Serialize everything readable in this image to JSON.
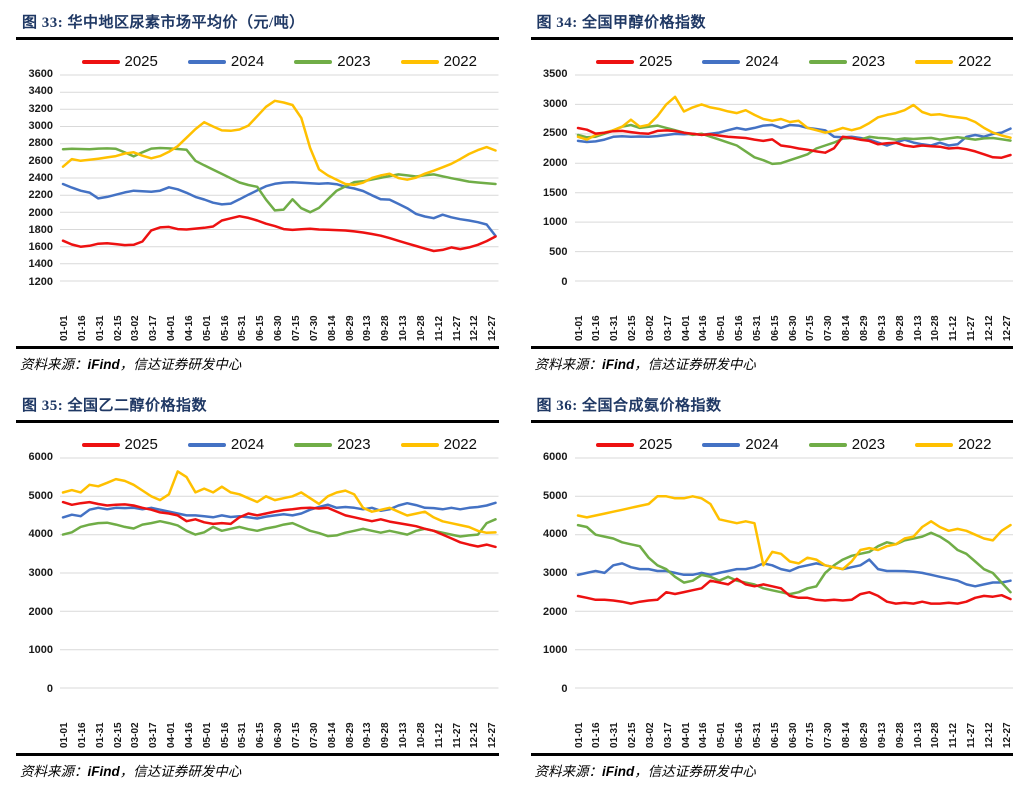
{
  "source": {
    "prefix": "资料来源：",
    "brand": "iFind",
    "suffix": "，信达证券研发中心"
  },
  "colors": {
    "title_text": "#1F3864",
    "gridline": "#D9D9D9",
    "rule": "#000000",
    "axis_text": "#1a1a1a",
    "red_2025": "#ED1111",
    "blue_2024": "#4472C4",
    "green_2023": "#70AD47",
    "yellow_2022": "#FFC000"
  },
  "chart_data": {
    "shared_x_tick_labels": [
      "01-01",
      "01-16",
      "01-31",
      "02-15",
      "03-02",
      "03-17",
      "04-01",
      "04-16",
      "05-01",
      "05-16",
      "05-31",
      "06-15",
      "06-30",
      "07-15",
      "07-30",
      "08-14",
      "08-29",
      "09-13",
      "09-28",
      "10-13",
      "10-28",
      "11-12",
      "11-27",
      "12-12",
      "12-27"
    ],
    "legend_position": "top",
    "grid": "horizontal",
    "charts": [
      {
        "type": "line",
        "title": "图 33: 华中地区尿素市场平均价（元/吨）",
        "y_axis": {
          "min": 1200,
          "max": 3600,
          "step": 200
        },
        "series": [
          {
            "name": "2025",
            "color": "#ED1111",
            "values": [
              1670,
              1625,
              1600,
              1610,
              1635,
              1640,
              1630,
              1618,
              1622,
              1660,
              1790,
              1825,
              1830,
              1805,
              1800,
              1810,
              1820,
              1835,
              1905,
              1930,
              1955,
              1935,
              1905,
              1868,
              1840,
              1805,
              1795,
              1802,
              1808,
              1800,
              1798,
              1793,
              1788,
              1778,
              1765,
              1748,
              1728,
              1700,
              1668,
              1638,
              1608,
              1578,
              1550,
              1562,
              1592,
              1572,
              1592,
              1622,
              1665,
              1718
            ]
          },
          {
            "name": "2024",
            "color": "#4472C4",
            "values": [
              2330,
              2288,
              2252,
              2230,
              2162,
              2180,
              2205,
              2232,
              2252,
              2246,
              2240,
              2252,
              2292,
              2268,
              2228,
              2180,
              2150,
              2112,
              2092,
              2102,
              2152,
              2205,
              2255,
              2305,
              2332,
              2346,
              2350,
              2344,
              2338,
              2332,
              2340,
              2328,
              2298,
              2278,
              2248,
              2198,
              2152,
              2148,
              2098,
              2048,
              1982,
              1952,
              1932,
              1972,
              1942,
              1920,
              1905,
              1885,
              1858,
              1725
            ]
          },
          {
            "name": "2023",
            "color": "#70AD47",
            "values": [
              2735,
              2740,
              2738,
              2735,
              2742,
              2745,
              2740,
              2698,
              2652,
              2700,
              2742,
              2750,
              2745,
              2738,
              2728,
              2600,
              2548,
              2498,
              2448,
              2398,
              2348,
              2318,
              2298,
              2148,
              2022,
              2032,
              2152,
              2048,
              2002,
              2052,
              2152,
              2252,
              2302,
              2352,
              2362,
              2382,
              2402,
              2422,
              2442,
              2430,
              2418,
              2432,
              2442,
              2420,
              2398,
              2378,
              2358,
              2348,
              2340,
              2330
            ]
          },
          {
            "name": "2022",
            "color": "#FFC000",
            "values": [
              2532,
              2620,
              2600,
              2612,
              2625,
              2640,
              2655,
              2685,
              2700,
              2660,
              2630,
              2655,
              2705,
              2770,
              2870,
              2970,
              3050,
              3000,
              2955,
              2950,
              2965,
              3010,
              3120,
              3230,
              3300,
              3280,
              3250,
              3100,
              2750,
              2500,
              2430,
              2380,
              2330,
              2320,
              2345,
              2400,
              2430,
              2450,
              2400,
              2380,
              2405,
              2450,
              2485,
              2525,
              2565,
              2620,
              2680,
              2725,
              2760,
              2720
            ]
          }
        ]
      },
      {
        "type": "line",
        "title": "图 34: 全国甲醇价格指数",
        "y_axis": {
          "min": 0,
          "max": 3500,
          "step": 500
        },
        "series": [
          {
            "name": "2025",
            "color": "#ED1111",
            "values": [
              2600,
              2570,
              2505,
              2520,
              2545,
              2550,
              2530,
              2512,
              2502,
              2550,
              2558,
              2548,
              2520,
              2502,
              2482,
              2492,
              2470,
              2452,
              2440,
              2430,
              2402,
              2380,
              2405,
              2302,
              2282,
              2252,
              2230,
              2202,
              2180,
              2255,
              2450,
              2430,
              2400,
              2380,
              2322,
              2342,
              2350,
              2302,
              2282,
              2302,
              2290,
              2282,
              2252,
              2262,
              2240,
              2202,
              2152,
              2102,
              2095,
              2140
            ]
          },
          {
            "name": "2024",
            "color": "#4472C4",
            "values": [
              2380,
              2362,
              2372,
              2402,
              2450,
              2460,
              2452,
              2455,
              2450,
              2462,
              2480,
              2500,
              2492,
              2502,
              2482,
              2502,
              2522,
              2562,
              2600,
              2572,
              2602,
              2640,
              2652,
              2602,
              2650,
              2640,
              2602,
              2582,
              2560,
              2452,
              2442,
              2452,
              2430,
              2402,
              2352,
              2302,
              2352,
              2400,
              2352,
              2322,
              2302,
              2350,
              2302,
              2322,
              2450,
              2480,
              2452,
              2500,
              2522,
              2590
            ]
          },
          {
            "name": "2023",
            "color": "#70AD47",
            "values": [
              2480,
              2442,
              2452,
              2502,
              2560,
              2622,
              2650,
              2602,
              2622,
              2640,
              2602,
              2562,
              2522,
              2482,
              2502,
              2452,
              2402,
              2352,
              2302,
              2202,
              2102,
              2052,
              1990,
              2002,
              2052,
              2102,
              2152,
              2252,
              2302,
              2352,
              2420,
              2430,
              2402,
              2450,
              2432,
              2422,
              2402,
              2422,
              2412,
              2422,
              2432,
              2402,
              2422,
              2442,
              2422,
              2402,
              2422,
              2430,
              2410,
              2385
            ]
          },
          {
            "name": "2022",
            "color": "#FFC000",
            "values": [
              2450,
              2402,
              2480,
              2522,
              2560,
              2622,
              2740,
              2622,
              2652,
              2802,
              3000,
              3130,
              2880,
              2950,
              3000,
              2950,
              2922,
              2882,
              2852,
              2902,
              2822,
              2752,
              2722,
              2752,
              2702,
              2722,
              2602,
              2562,
              2522,
              2552,
              2602,
              2562,
              2602,
              2682,
              2782,
              2822,
              2852,
              2902,
              2990,
              2872,
              2822,
              2832,
              2802,
              2782,
              2762,
              2702,
              2602,
              2522,
              2472,
              2435
            ]
          }
        ]
      },
      {
        "type": "line",
        "title": "图 35: 全国乙二醇价格指数",
        "y_axis": {
          "min": 0,
          "max": 6000,
          "step": 1000
        },
        "series": [
          {
            "name": "2025",
            "color": "#ED1111",
            "values": [
              4850,
              4780,
              4820,
              4850,
              4800,
              4762,
              4782,
              4790,
              4762,
              4702,
              4652,
              4582,
              4552,
              4502,
              4352,
              4402,
              4322,
              4282,
              4302,
              4282,
              4452,
              4552,
              4502,
              4552,
              4602,
              4642,
              4662,
              4692,
              4702,
              4682,
              4700,
              4602,
              4502,
              4452,
              4402,
              4352,
              4402,
              4342,
              4302,
              4262,
              4222,
              4152,
              4102,
              4002,
              3902,
              3802,
              3742,
              3692,
              3742,
              3682
            ]
          },
          {
            "name": "2024",
            "color": "#4472C4",
            "values": [
              4450,
              4522,
              4482,
              4652,
              4702,
              4662,
              4702,
              4692,
              4700,
              4662,
              4700,
              4652,
              4602,
              4552,
              4502,
              4502,
              4482,
              4452,
              4502,
              4462,
              4482,
              4452,
              4422,
              4472,
              4502,
              4532,
              4502,
              4552,
              4652,
              4722,
              4782,
              4702,
              4722,
              4702,
              4662,
              4702,
              4622,
              4662,
              4762,
              4822,
              4772,
              4702,
              4692,
              4662,
              4702,
              4662,
              4702,
              4722,
              4762,
              4830
            ]
          },
          {
            "name": "2023",
            "color": "#70AD47",
            "values": [
              4002,
              4062,
              4202,
              4262,
              4302,
              4312,
              4262,
              4202,
              4162,
              4262,
              4302,
              4352,
              4302,
              4242,
              4102,
              4002,
              4062,
              4202,
              4102,
              4152,
              4202,
              4142,
              4102,
              4162,
              4202,
              4262,
              4302,
              4202,
              4102,
              4042,
              3962,
              3982,
              4052,
              4102,
              4152,
              4102,
              4052,
              4102,
              4052,
              4002,
              4102,
              4152,
              4102,
              4052,
              4002,
              3952,
              3982,
              4002,
              4302,
              4400
            ]
          },
          {
            "name": "2022",
            "color": "#FFC000",
            "values": [
              5100,
              5162,
              5102,
              5302,
              5262,
              5352,
              5450,
              5402,
              5302,
              5152,
              5002,
              4902,
              5052,
              5650,
              5502,
              5102,
              5202,
              5102,
              5252,
              5102,
              5052,
              4952,
              4852,
              5002,
              4902,
              4952,
              5002,
              5102,
              4952,
              4802,
              5002,
              5100,
              5150,
              5050,
              4700,
              4600,
              4650,
              4700,
              4600,
              4500,
              4550,
              4600,
              4450,
              4350,
              4300,
              4250,
              4200,
              4100,
              4050,
              4060
            ]
          }
        ]
      },
      {
        "type": "line",
        "title": "图 36: 全国合成氨价格指数",
        "y_axis": {
          "min": 0,
          "max": 6000,
          "step": 1000
        },
        "series": [
          {
            "name": "2025",
            "color": "#ED1111",
            "values": [
              2400,
              2352,
              2302,
              2300,
              2282,
              2252,
              2202,
              2252,
              2282,
              2302,
              2500,
              2452,
              2502,
              2552,
              2602,
              2800,
              2752,
              2702,
              2850,
              2702,
              2652,
              2702,
              2652,
              2602,
              2402,
              2352,
              2352,
              2302,
              2282,
              2302,
              2282,
              2302,
              2450,
              2500,
              2402,
              2252,
              2202,
              2222,
              2202,
              2252,
              2202,
              2202,
              2222,
              2202,
              2252,
              2352,
              2402,
              2382,
              2420,
              2320
            ]
          },
          {
            "name": "2024",
            "color": "#4472C4",
            "values": [
              2950,
              3002,
              3052,
              3002,
              3200,
              3250,
              3152,
              3102,
              3102,
              3052,
              3052,
              3002,
              2952,
              2952,
              3002,
              2952,
              3002,
              3052,
              3102,
              3102,
              3152,
              3250,
              3202,
              3102,
              3052,
              3152,
              3202,
              3250,
              3202,
              3152,
              3102,
              3152,
              3202,
              3350,
              3102,
              3052,
              3052,
              3050,
              3030,
              3002,
              2952,
              2902,
              2852,
              2802,
              2702,
              2652,
              2702,
              2752,
              2752,
              2800
            ]
          },
          {
            "name": "2023",
            "color": "#70AD47",
            "values": [
              4250,
              4200,
              4000,
              3950,
              3900,
              3800,
              3750,
              3700,
              3400,
              3200,
              3100,
              2900,
              2750,
              2800,
              2950,
              2900,
              2800,
              2900,
              2800,
              2750,
              2700,
              2600,
              2550,
              2500,
              2450,
              2500,
              2600,
              2650,
              3000,
              3200,
              3350,
              3450,
              3500,
              3550,
              3700,
              3800,
              3750,
              3850,
              3900,
              3950,
              4050,
              3950,
              3800,
              3600,
              3500,
              3300,
              3100,
              3000,
              2750,
              2500
            ]
          },
          {
            "name": "2022",
            "color": "#FFC000",
            "values": [
              4500,
              4450,
              4500,
              4550,
              4600,
              4650,
              4700,
              4750,
              4800,
              5000,
              5000,
              4950,
              4950,
              5000,
              4950,
              4800,
              4400,
              4350,
              4300,
              4350,
              4300,
              3200,
              3550,
              3500,
              3300,
              3250,
              3400,
              3350,
              3200,
              3150,
              3100,
              3300,
              3600,
              3650,
              3600,
              3700,
              3750,
              3900,
              3950,
              4200,
              4350,
              4200,
              4100,
              4150,
              4100,
              4000,
              3900,
              3850,
              4100,
              4250
            ]
          }
        ]
      }
    ]
  }
}
